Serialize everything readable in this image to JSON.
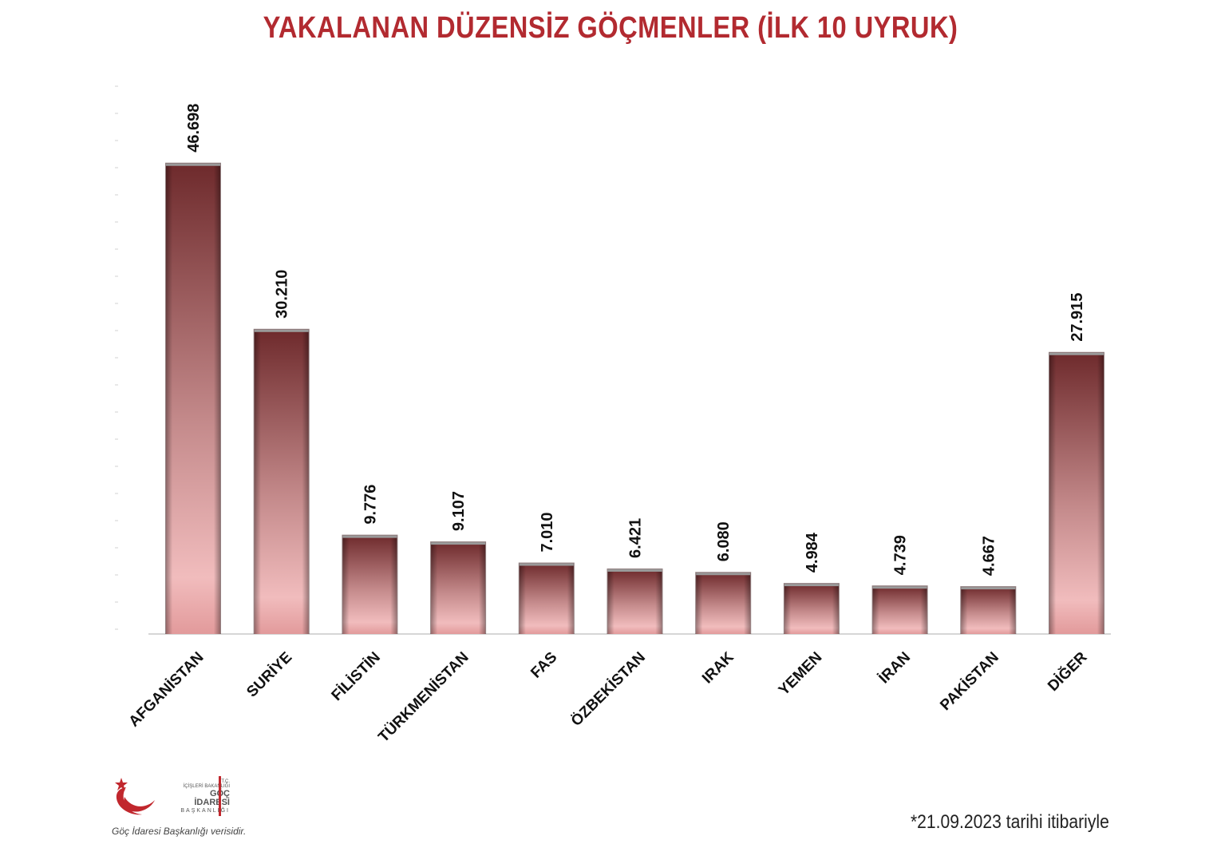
{
  "chart_data": {
    "type": "bar",
    "title": "YAKALANAN DÜZENSİZ GÖÇMENLER (İLK 10 UYRUK)",
    "xlabel": "",
    "ylabel": "",
    "ylim": [
      0,
      55000
    ],
    "grid": false,
    "categories": [
      "AFGANİSTAN",
      "SURİYE",
      "FİLİSTİN",
      "TÜRKMENİSTAN",
      "FAS",
      "ÖZBEKİSTAN",
      "IRAK",
      "YEMEN",
      "İRAN",
      "PAKİSTAN",
      "DİĞER"
    ],
    "values": [
      46698,
      30210,
      9776,
      9107,
      7010,
      6421,
      6080,
      4984,
      4739,
      4667,
      27915
    ],
    "value_labels": [
      "46.698",
      "30.210",
      "9.776",
      "9.107",
      "7.010",
      "6.421",
      "6.080",
      "4.984",
      "4.739",
      "4.667",
      "27.915"
    ],
    "colors": {
      "bar_dark": "#6e2a2c",
      "bar_light": "#f1bcbd",
      "title": "#b22a30"
    }
  },
  "logo": {
    "line1": "T.C.",
    "line2": "İÇİŞLERİ BAKANLIĞI",
    "line3": "GÖÇ İDARESİ",
    "line4": "BAŞKANLIĞI",
    "icon": "crescent-star-icon"
  },
  "source_note": "Göç İdaresi Başkanlığı verisidir.",
  "footnote": "*21.09.2023 tarihi itibariyle"
}
